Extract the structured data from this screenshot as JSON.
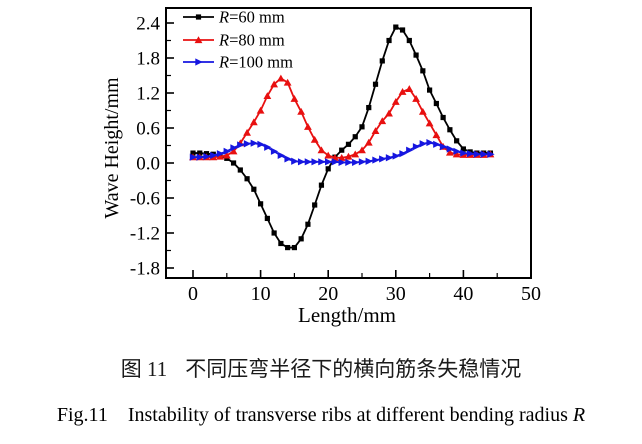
{
  "figure": {
    "captions": {
      "zh_label": "图 11",
      "zh_text": "不同压弯半径下的横向筋条失稳情况",
      "en_label": "Fig.11",
      "en_text": "Instability of transverse ribs at different bending radius",
      "en_italic_suffix": "R"
    }
  },
  "chart_data": {
    "type": "line",
    "title": "",
    "xlabel": "Length/mm",
    "ylabel": "Wave Height/mm",
    "xlim": [
      -4,
      50
    ],
    "ylim": [
      -1.97,
      2.66
    ],
    "xtick_labels": [
      "0",
      "10",
      "20",
      "30",
      "40",
      "50"
    ],
    "xticks_major": [
      0,
      10,
      20,
      30,
      40,
      50
    ],
    "xticks_minor": [
      5,
      15,
      25,
      35,
      45
    ],
    "ytick_labels": [
      "-1.8",
      "-1.2",
      "-0.6",
      "0.0",
      "0.6",
      "1.2",
      "1.8",
      "2.4"
    ],
    "yticks_major": [
      -1.8,
      -1.2,
      -0.6,
      0.0,
      0.6,
      1.2,
      1.8,
      2.4
    ],
    "yticks_minor": [
      -1.5,
      -0.9,
      -0.3,
      0.3,
      0.9,
      1.5,
      2.1
    ],
    "grid": false,
    "legend_position": "top-left-inside",
    "axis_color": "#000000",
    "x": [
      0,
      1,
      2,
      3,
      4,
      5,
      6,
      7,
      8,
      9,
      10,
      11,
      12,
      13,
      14,
      15,
      16,
      17,
      18,
      19,
      20,
      21,
      22,
      23,
      24,
      25,
      26,
      27,
      28,
      29,
      30,
      31,
      32,
      33,
      34,
      35,
      36,
      37,
      38,
      39,
      40,
      41,
      42,
      43,
      44
    ],
    "series": [
      {
        "name": "R=60 mm",
        "label_italic": "R",
        "label_rest": "=60 mm",
        "color": "#000000",
        "marker": "square",
        "values": [
          0.17,
          0.17,
          0.16,
          0.15,
          0.13,
          0.08,
          0.0,
          -0.12,
          -0.27,
          -0.45,
          -0.7,
          -0.95,
          -1.2,
          -1.38,
          -1.45,
          -1.45,
          -1.3,
          -1.05,
          -0.72,
          -0.38,
          -0.1,
          0.1,
          0.22,
          0.32,
          0.45,
          0.62,
          0.95,
          1.35,
          1.75,
          2.1,
          2.33,
          2.28,
          2.1,
          1.85,
          1.58,
          1.25,
          1.02,
          0.78,
          0.57,
          0.38,
          0.24,
          0.19,
          0.17,
          0.17,
          0.17
        ]
      },
      {
        "name": "R=80 mm",
        "label_italic": "R",
        "label_rest": "=80 mm",
        "color": "#e81010",
        "marker": "triangle-up",
        "values": [
          0.1,
          0.1,
          0.1,
          0.1,
          0.11,
          0.13,
          0.2,
          0.34,
          0.52,
          0.7,
          0.9,
          1.15,
          1.35,
          1.45,
          1.38,
          1.1,
          0.88,
          0.62,
          0.4,
          0.22,
          0.13,
          0.09,
          0.09,
          0.11,
          0.15,
          0.22,
          0.35,
          0.55,
          0.72,
          0.85,
          1.05,
          1.22,
          1.27,
          1.1,
          0.88,
          0.68,
          0.48,
          0.28,
          0.18,
          0.15,
          0.14,
          0.14,
          0.14,
          0.14,
          0.15
        ]
      },
      {
        "name": "R=100 mm",
        "label_italic": "R",
        "label_rest": "=100 mm",
        "color": "#1616e0",
        "marker": "triangle-right",
        "values": [
          0.1,
          0.1,
          0.11,
          0.13,
          0.16,
          0.2,
          0.26,
          0.31,
          0.33,
          0.34,
          0.32,
          0.27,
          0.2,
          0.13,
          0.07,
          0.03,
          0.02,
          0.02,
          0.02,
          0.02,
          0.02,
          0.02,
          0.01,
          0.01,
          0.01,
          0.02,
          0.03,
          0.05,
          0.07,
          0.09,
          0.12,
          0.16,
          0.22,
          0.28,
          0.33,
          0.35,
          0.32,
          0.28,
          0.24,
          0.2,
          0.17,
          0.16,
          0.15,
          0.15,
          0.15
        ]
      }
    ]
  }
}
